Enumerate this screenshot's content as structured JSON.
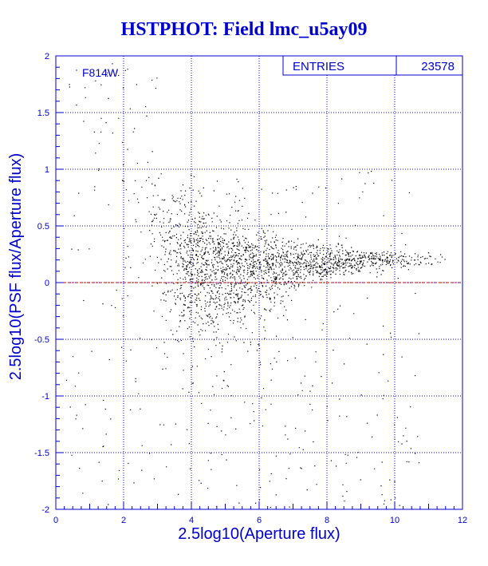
{
  "title": "HSTPHOT: Field lmc_u5ay09",
  "colors": {
    "axis": "#0000cc",
    "grid": "#0000cc",
    "points": "#000000",
    "zero_line": "#cc0000",
    "title": "#0000cc"
  },
  "stats": {
    "entries_label": "ENTRIES",
    "entries_value": "23578"
  },
  "chart_data": {
    "type": "scatter",
    "filter_label": "F814W",
    "xlabel": "2.5log10(Aperture flux)",
    "ylabel": "2.5log10(PSF flux/Aperture flux)",
    "xlim": [
      0,
      12
    ],
    "ylim": [
      -2,
      2
    ],
    "x_ticks": [
      0,
      2,
      4,
      6,
      8,
      10,
      12
    ],
    "y_ticks": [
      -2,
      -1.5,
      -1,
      -0.5,
      0,
      0.5,
      1,
      1.5,
      2
    ],
    "x_tick_labels": [
      "0",
      "2",
      "4",
      "6",
      "8",
      "10",
      "12"
    ],
    "y_tick_labels": [
      "-2",
      "-1.5",
      "-1",
      "-0.5",
      "0",
      "0.5",
      "1",
      "1.5",
      "2"
    ],
    "grid": true,
    "reference_line_y": 0,
    "entries": 23578,
    "point_density_profile": [
      {
        "x_center": 2.5,
        "median_y": 0.8,
        "spread": 0.35,
        "relative_density": 0.04
      },
      {
        "x_center": 3.0,
        "median_y": 0.45,
        "spread": 0.3,
        "relative_density": 0.25
      },
      {
        "x_center": 3.5,
        "median_y": 0.3,
        "spread": 0.3,
        "relative_density": 0.6
      },
      {
        "x_center": 4.0,
        "median_y": 0.2,
        "spread": 0.28,
        "relative_density": 1.0
      },
      {
        "x_center": 4.5,
        "median_y": 0.16,
        "spread": 0.25,
        "relative_density": 1.0
      },
      {
        "x_center": 5.0,
        "median_y": 0.15,
        "spread": 0.22,
        "relative_density": 0.95
      },
      {
        "x_center": 6.0,
        "median_y": 0.16,
        "spread": 0.15,
        "relative_density": 0.8
      },
      {
        "x_center": 7.0,
        "median_y": 0.17,
        "spread": 0.1,
        "relative_density": 0.6
      },
      {
        "x_center": 8.0,
        "median_y": 0.18,
        "spread": 0.07,
        "relative_density": 0.45
      },
      {
        "x_center": 9.0,
        "median_y": 0.2,
        "spread": 0.05,
        "relative_density": 0.3
      },
      {
        "x_center": 10.0,
        "median_y": 0.2,
        "spread": 0.04,
        "relative_density": 0.18
      },
      {
        "x_center": 11.0,
        "median_y": 0.21,
        "spread": 0.03,
        "relative_density": 0.05
      }
    ]
  }
}
